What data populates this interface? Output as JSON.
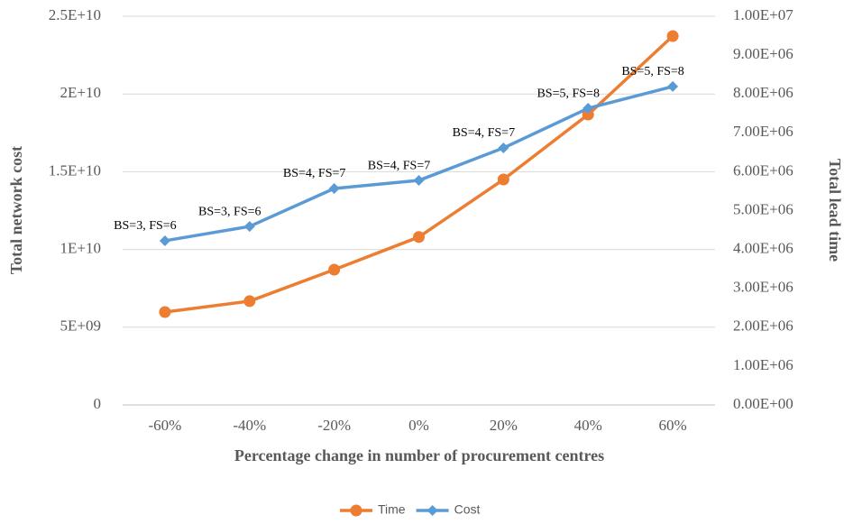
{
  "chart_data": {
    "type": "line",
    "categories": [
      "-60%",
      "-40%",
      "-20%",
      "0%",
      "20%",
      "40%",
      "60%"
    ],
    "series": [
      {
        "name": "Time",
        "color": "#ed7d31",
        "marker": "circle",
        "axis": "y2",
        "values": [
          2390000,
          2670000,
          3480000,
          4320000,
          5800000,
          7470000,
          9490000
        ]
      },
      {
        "name": "Cost",
        "color": "#5b9bd5",
        "marker": "diamond",
        "values": [
          10560000000,
          11480000000,
          13920000000,
          14440000000,
          16530000000,
          19080000000,
          20480000000
        ]
      }
    ],
    "annotations": [
      "BS=3, FS=6",
      "BS=3, FS=6",
      "BS=4, FS=7",
      "BS=4, FS=7",
      "BS=4, FS=7",
      "BS=5, FS=8",
      "BS=5, FS=8"
    ],
    "xlabel": "Percentage change in number of procurement centres",
    "ylabel": "Total network cost",
    "y2label": "Total lead time",
    "ylim": [
      0,
      25000000000
    ],
    "yticks": [
      0,
      {
        "value": 5000000000,
        "label": "5E+09"
      },
      {
        "value": 10000000000,
        "label": "1E+10"
      },
      {
        "value": 15000000000,
        "label": "1.5E+10"
      },
      {
        "value": 20000000000,
        "label": "2E+10"
      },
      {
        "value": 25000000000,
        "label": "2.5E+10"
      }
    ],
    "y2lim": [
      0,
      10000000
    ],
    "y2ticks": [
      {
        "value": 0,
        "label": "0.00E+00"
      },
      {
        "value": 1000000,
        "label": "1.00E+06"
      },
      {
        "value": 2000000,
        "label": "2.00E+06"
      },
      {
        "value": 3000000,
        "label": "3.00E+06"
      },
      {
        "value": 4000000,
        "label": "4.00E+06"
      },
      {
        "value": 5000000,
        "label": "5.00E+06"
      },
      {
        "value": 6000000,
        "label": "6.00E+06"
      },
      {
        "value": 7000000,
        "label": "7.00E+06"
      },
      {
        "value": 8000000,
        "label": "8.00E+06"
      },
      {
        "value": 9000000,
        "label": "9.00E+06"
      },
      {
        "value": 10000000,
        "label": "1.00E+07"
      }
    ],
    "grid": true,
    "legend": "bottom"
  }
}
